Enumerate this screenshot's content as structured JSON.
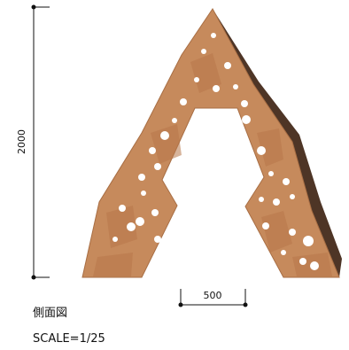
{
  "dimensions": {
    "height": "2000",
    "width": "500"
  },
  "caption": {
    "title": "側面図",
    "scale": "SCALE=1/25"
  }
}
